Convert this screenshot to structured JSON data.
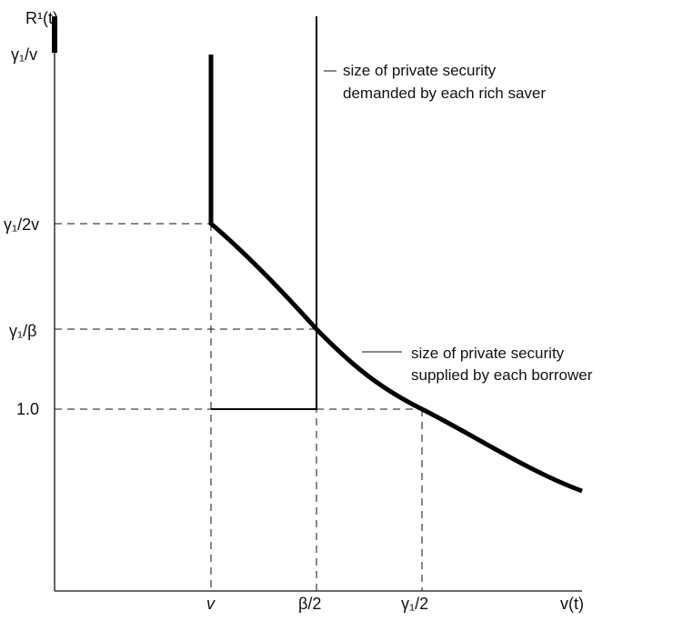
{
  "y_axis": {
    "label": "R¹(t)",
    "ticks": [
      "γ₁/v",
      "γ₁/2v",
      "γ₁/β",
      "1.0"
    ]
  },
  "x_axis": {
    "label": "v(t)",
    "ticks": [
      "v",
      "β/2",
      "γ₁/2"
    ]
  },
  "annotations": {
    "demand": [
      "size of private security",
      "demanded by each rich saver"
    ],
    "supply": [
      "size of private security",
      "supplied by each borrower"
    ]
  }
}
